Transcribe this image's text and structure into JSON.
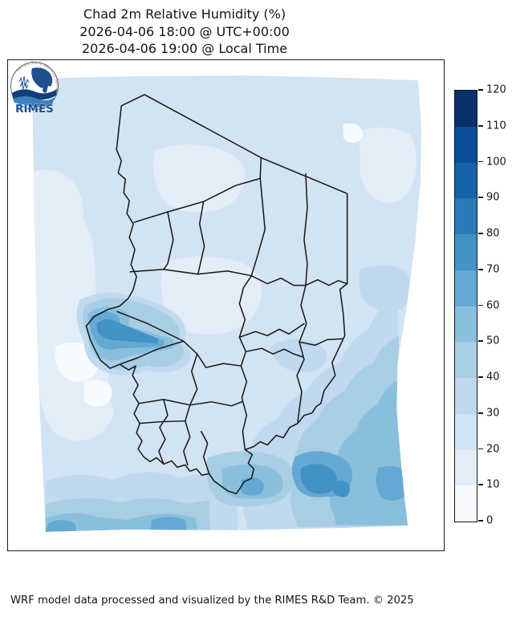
{
  "figure": {
    "title_line1": "Chad 2m Relative Humidity (%)",
    "title_line2": "2026-04-06 18:00 @ UTC+00:00",
    "title_line3": "2026-04-06 19:00 @ Local Time",
    "footer": "WRF model data processed and visualized by the RIMES R&D Team. © 2025"
  },
  "colorbar": {
    "min": 0,
    "max": 120,
    "ticks": [
      0,
      10,
      20,
      30,
      40,
      50,
      60,
      70,
      80,
      90,
      100,
      110,
      120
    ],
    "levels": [
      "#f7fbff",
      "#e2edf8",
      "#d2e3f3",
      "#c0d9ee",
      "#a8cee4",
      "#89bfdd",
      "#64a9d3",
      "#4292c6",
      "#2a7ab9",
      "#1563aa",
      "#094e98",
      "#08306b"
    ]
  },
  "logo": {
    "wordmark": "RIMES",
    "ring_text": "Hazard Early Warning System"
  },
  "chart_data": {
    "type": "heatmap",
    "title": "Chad 2m Relative Humidity (%)",
    "valid_time_utc": "2026-04-06 18:00 @ UTC+00:00",
    "valid_time_local": "2026-04-06 19:00 @ Local Time",
    "units": "%",
    "region": "Chad",
    "colorbar_range": [
      0,
      120
    ],
    "colorbar_ticks": [
      0,
      10,
      20,
      30,
      40,
      50,
      60,
      70,
      80,
      90,
      100,
      110,
      120
    ],
    "level_colors": [
      "#f7fbff",
      "#e2edf8",
      "#d2e3f3",
      "#c0d9ee",
      "#a8cee4",
      "#89bfdd",
      "#64a9d3",
      "#4292c6",
      "#2a7ab9",
      "#1563aa",
      "#094e98",
      "#08306b"
    ],
    "legend_position": "right",
    "field_summary": {
      "northern_desert": "10-30 %",
      "western_margin": "10-20 %",
      "central_belt": "20-30 %",
      "lake_chad_west_patch": "50-80 %",
      "southeast_maximum": "60-80 %",
      "southern_border_band": "30-70 %"
    }
  }
}
